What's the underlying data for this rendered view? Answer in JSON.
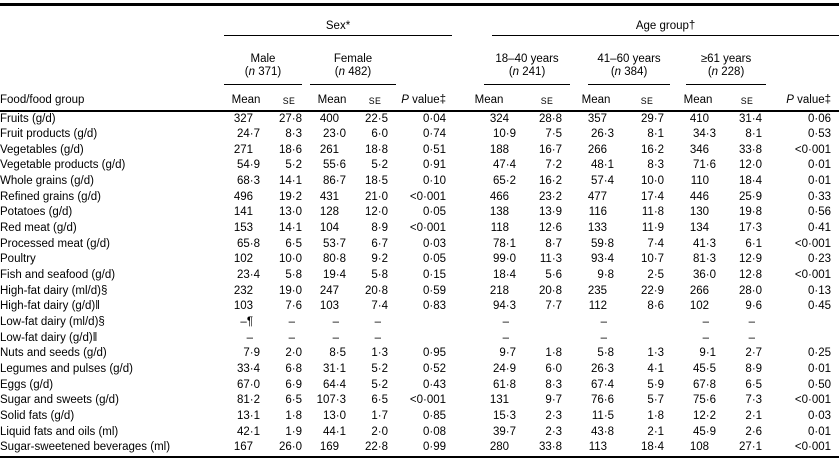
{
  "table": {
    "groups": {
      "sex": "Sex*",
      "age": "Age group†"
    },
    "subgroups": [
      {
        "label": "Male",
        "n": "(n 371)"
      },
      {
        "label": "Female",
        "n": "(n 482)"
      },
      {
        "label": "18–40 years",
        "n": "(n 241)"
      },
      {
        "label": "41–60 years",
        "n": "(n 384)"
      },
      {
        "label": "≥61 years",
        "n": "(n 228)"
      }
    ],
    "columns": {
      "food": "Food/food group",
      "mean": "Mean",
      "se": "SE",
      "p": "P value‡"
    },
    "rows": [
      {
        "label": "Fruits (g/d)",
        "values": [
          "327",
          "27·8",
          "400",
          "22·5",
          "0·04",
          "324",
          "28·8",
          "357",
          "29·7",
          "410",
          "31·4",
          "0·06"
        ]
      },
      {
        "label": "Fruit products (g/d)",
        "values": [
          "24·7",
          "8·3",
          "23·0",
          "6·0",
          "0·74",
          "10·9",
          "7·5",
          "26·3",
          "8·1",
          "34·3",
          "8·1",
          "0·53"
        ]
      },
      {
        "label": "Vegetables (g/d)",
        "values": [
          "271",
          "18·6",
          "261",
          "18·8",
          "0·51",
          "188",
          "16·7",
          "266",
          "16·2",
          "346",
          "33·8",
          "<0·001"
        ]
      },
      {
        "label": "Vegetable products (g/d)",
        "values": [
          "54·9",
          "5·2",
          "55·6",
          "5·2",
          "0·91",
          "47·4",
          "7·2",
          "48·1",
          "8·3",
          "71·6",
          "12·0",
          "0·01"
        ]
      },
      {
        "label": "Whole grains (g/d)",
        "values": [
          "68·3",
          "14·1",
          "86·7",
          "18·5",
          "0·10",
          "65·2",
          "16·2",
          "57·4",
          "10·0",
          "110",
          "18·4",
          "0·01"
        ]
      },
      {
        "label": "Refined grains (g/d)",
        "values": [
          "496",
          "19·2",
          "431",
          "21·0",
          "<0·001",
          "466",
          "23·2",
          "477",
          "17·4",
          "446",
          "25·9",
          "0·33"
        ]
      },
      {
        "label": "Potatoes (g/d)",
        "values": [
          "141",
          "13·0",
          "128",
          "12·0",
          "0·05",
          "138",
          "13·9",
          "116",
          "11·8",
          "130",
          "19·8",
          "0·56"
        ]
      },
      {
        "label": "Red meat (g/d)",
        "values": [
          "153",
          "14·1",
          "104",
          "8·9",
          "<0·001",
          "118",
          "12·6",
          "133",
          "11·9",
          "134",
          "17·3",
          "0·41"
        ]
      },
      {
        "label": "Processed meat (g/d)",
        "values": [
          "65·8",
          "6·5",
          "53·7",
          "6·7",
          "0·03",
          "78·1",
          "8·7",
          "59·8",
          "7·4",
          "41·3",
          "6·1",
          "<0·001"
        ]
      },
      {
        "label": "Poultry",
        "values": [
          "102",
          "10·0",
          "80·8",
          "9·2",
          "0·05",
          "99·0",
          "11·3",
          "93·4",
          "10·7",
          "81·3",
          "12·9",
          "0·23"
        ]
      },
      {
        "label": "Fish and seafood (g/d)",
        "values": [
          "23·4",
          "5·8",
          "19·4",
          "5·8",
          "0·15",
          "18·4",
          "5·6",
          "9·8",
          "2·5",
          "36·0",
          "12·8",
          "<0·001"
        ]
      },
      {
        "label": "High-fat dairy (ml/d)§",
        "values": [
          "232",
          "19·0",
          "247",
          "20·8",
          "0·59",
          "218",
          "20·8",
          "235",
          "22·9",
          "266",
          "28·0",
          "0·13"
        ]
      },
      {
        "label": "High-fat dairy (g/d)‖",
        "values": [
          "103",
          "7·6",
          "103",
          "7·4",
          "0·83",
          "94·3",
          "7·7",
          "112",
          "8·6",
          "102",
          "9·6",
          "0·45"
        ]
      },
      {
        "label": "Low-fat dairy (ml/d)§",
        "values": [
          "–¶",
          "–",
          "–",
          "–",
          "",
          "–",
          "",
          "–",
          "",
          "–",
          "–",
          ""
        ]
      },
      {
        "label": "Low-fat dairy (g/d)‖",
        "values": [
          "–",
          "–",
          "–",
          "–",
          "",
          "–",
          "",
          "–",
          "",
          "–",
          "–",
          ""
        ]
      },
      {
        "label": "Nuts and seeds (g/d)",
        "values": [
          "7·9",
          "2·0",
          "8·5",
          "1·3",
          "0·95",
          "9·7",
          "1·8",
          "5·8",
          "1·3",
          "9·1",
          "2·7",
          "0·25"
        ]
      },
      {
        "label": "Legumes and pulses (g/d)",
        "values": [
          "33·4",
          "6·8",
          "31·1",
          "5·2",
          "0·52",
          "24·9",
          "6·0",
          "26·3",
          "4·1",
          "45·5",
          "8·9",
          "0·01"
        ]
      },
      {
        "label": "Eggs (g/d)",
        "values": [
          "67·0",
          "6·9",
          "64·4",
          "5·2",
          "0·43",
          "61·8",
          "8·3",
          "67·4",
          "5·9",
          "67·8",
          "6·5",
          "0·50"
        ]
      },
      {
        "label": "Sugar and sweets (g/d)",
        "values": [
          "81·2",
          "6·5",
          "107·3",
          "6·5",
          "<0·001",
          "131",
          "9·7",
          "76·6",
          "5·7",
          "75·6",
          "7·3",
          "<0·001"
        ]
      },
      {
        "label": "Solid fats (g/d)",
        "values": [
          "13·1",
          "1·8",
          "13·0",
          "1·7",
          "0·85",
          "15·3",
          "2·3",
          "11·5",
          "1·8",
          "12·2",
          "2·1",
          "0·03"
        ]
      },
      {
        "label": "Liquid fats and oils (ml)",
        "values": [
          "42·1",
          "1·9",
          "44·1",
          "2·0",
          "0·08",
          "39·7",
          "2·3",
          "43·8",
          "2·1",
          "45·9",
          "2·6",
          "0·01"
        ]
      },
      {
        "label": "Sugar-sweetened beverages (ml)",
        "values": [
          "167",
          "26·0",
          "169",
          "22·8",
          "0·99",
          "280",
          "33·8",
          "113",
          "18·4",
          "108",
          "27·1",
          "<0·001"
        ]
      }
    ]
  }
}
